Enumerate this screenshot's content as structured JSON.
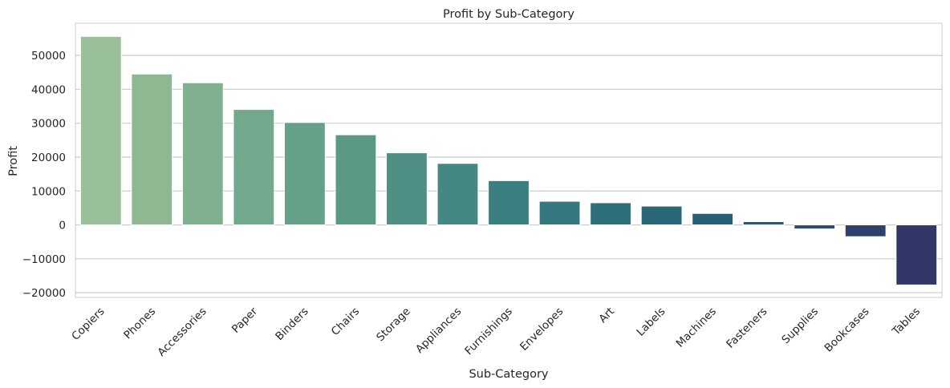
{
  "chart_data": {
    "type": "bar",
    "title": "Profit by Sub-Category",
    "xlabel": "Sub-Category",
    "ylabel": "Profit",
    "categories": [
      "Copiers",
      "Phones",
      "Accessories",
      "Paper",
      "Binders",
      "Chairs",
      "Storage",
      "Appliances",
      "Furnishings",
      "Envelopes",
      "Art",
      "Labels",
      "Machines",
      "Fasteners",
      "Supplies",
      "Bookcases",
      "Tables"
    ],
    "values": [
      55618,
      44516,
      41937,
      34054,
      30222,
      26590,
      21279,
      18138,
      13059,
      6964,
      6528,
      5546,
      3385,
      950,
      -1189,
      -3473,
      -17725
    ],
    "ylim": [
      -21400,
      59500
    ],
    "yticks": [
      -20000,
      -10000,
      0,
      10000,
      20000,
      30000,
      40000,
      50000
    ],
    "ytick_labels": [
      "−20000",
      "−10000",
      "0",
      "10000",
      "20000",
      "30000",
      "40000",
      "50000"
    ],
    "grid": true,
    "palette": "crest",
    "colors": [
      "#99c09a",
      "#8db892",
      "#80b08f",
      "#72a88b",
      "#66a089",
      "#5b9886",
      "#4f8f85",
      "#458883",
      "#3b8080",
      "#35787f",
      "#2e6f7c",
      "#2a6779",
      "#295e77",
      "#2a5474",
      "#2c4b70",
      "#2e416c",
      "#313867"
    ]
  }
}
